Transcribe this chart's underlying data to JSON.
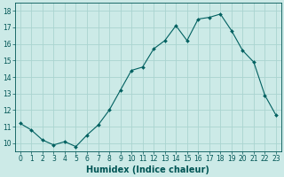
{
  "x": [
    0,
    1,
    2,
    3,
    4,
    5,
    6,
    7,
    8,
    9,
    10,
    11,
    12,
    13,
    14,
    15,
    16,
    17,
    18,
    19,
    20,
    21,
    22,
    23
  ],
  "y": [
    11.2,
    10.8,
    10.2,
    9.9,
    10.1,
    9.8,
    10.5,
    11.1,
    12.0,
    13.2,
    14.4,
    14.6,
    15.7,
    16.2,
    17.1,
    16.2,
    17.5,
    17.6,
    17.8,
    16.8,
    15.6,
    14.9,
    12.9,
    11.7
  ],
  "line_color": "#006060",
  "marker": "D",
  "marker_size": 2.0,
  "bg_color": "#cceae7",
  "grid_color": "#aad4d0",
  "xlabel": "Humidex (Indice chaleur)",
  "ylim": [
    9.5,
    18.5
  ],
  "xlim": [
    -0.5,
    23.5
  ],
  "yticks": [
    10,
    11,
    12,
    13,
    14,
    15,
    16,
    17,
    18
  ],
  "xticks": [
    0,
    1,
    2,
    3,
    4,
    5,
    6,
    7,
    8,
    9,
    10,
    11,
    12,
    13,
    14,
    15,
    16,
    17,
    18,
    19,
    20,
    21,
    22,
    23
  ],
  "tick_color": "#005555",
  "label_color": "#005555",
  "tick_fontsize": 5.5,
  "xlabel_fontsize": 7.0,
  "linewidth": 0.8,
  "linestyle": "-"
}
